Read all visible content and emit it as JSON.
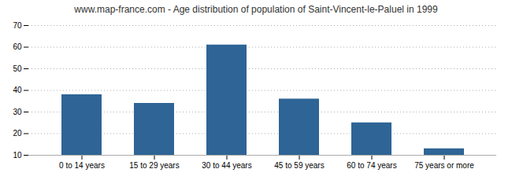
{
  "chart_data": {
    "type": "bar",
    "title": "www.map-france.com - Age distribution of population of Saint-Vincent-le-Paluel in 1999",
    "categories": [
      "0 to 14 years",
      "15 to 29 years",
      "30 to 44 years",
      "45 to 59 years",
      "60 to 74 years",
      "75 years or more"
    ],
    "values": [
      38,
      34,
      61,
      36,
      25,
      13
    ],
    "color": "#2e6496",
    "ylim": [
      10,
      70
    ],
    "yticks": [
      10,
      20,
      30,
      40,
      50,
      60,
      70
    ],
    "grid": true
  }
}
